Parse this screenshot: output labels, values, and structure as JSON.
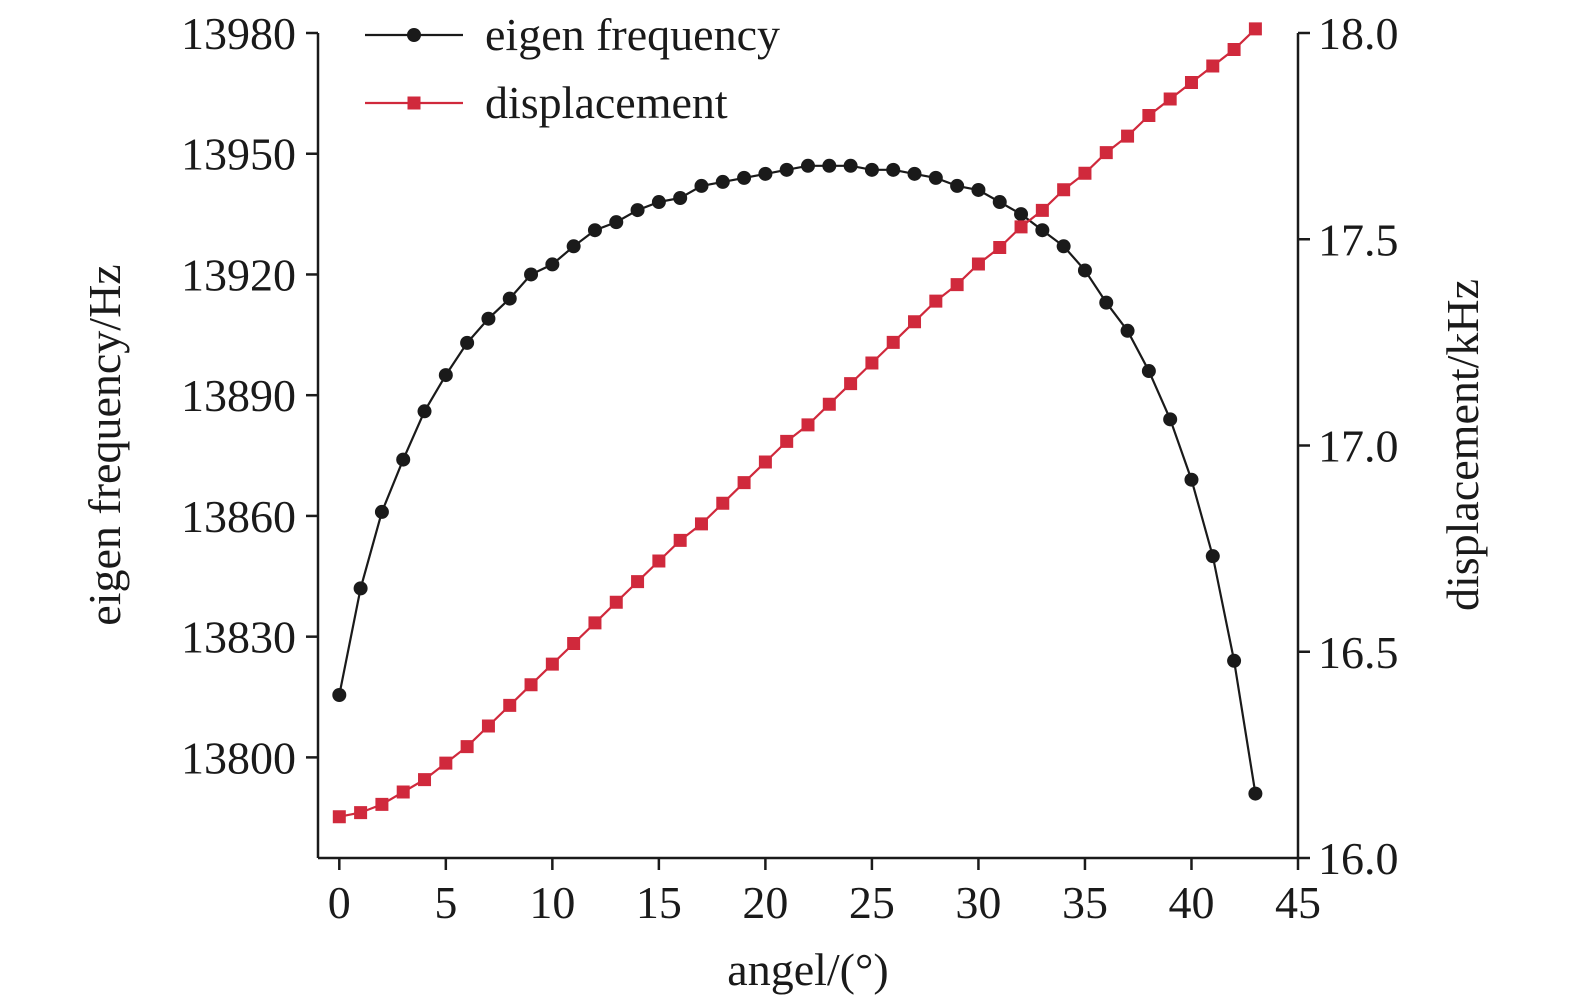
{
  "chart_data": {
    "type": "line",
    "xlabel": "angel/(°)",
    "ylabel_left": "eigen frequency/Hz",
    "ylabel_right": "displacement/kHz",
    "xlim": [
      -1,
      45
    ],
    "ylim_left": [
      13775,
      13980
    ],
    "ylim_right": [
      16.0,
      18.0
    ],
    "x_ticks": [
      0,
      5,
      10,
      15,
      20,
      25,
      30,
      35,
      40,
      45
    ],
    "y_left_ticks": [
      13800,
      13830,
      13860,
      13890,
      13920,
      13950,
      13980
    ],
    "y_right_ticks": [
      "16.0",
      "16.5",
      "17.0",
      "17.5",
      "18.0"
    ],
    "grid": false,
    "legend_position": "top-left",
    "x": [
      0,
      1,
      2,
      3,
      4,
      5,
      6,
      7,
      8,
      9,
      10,
      11,
      12,
      13,
      14,
      15,
      16,
      17,
      18,
      19,
      20,
      21,
      22,
      23,
      24,
      25,
      26,
      27,
      28,
      29,
      30,
      31,
      32,
      33,
      34,
      35,
      36,
      37,
      38,
      39,
      40,
      41,
      42,
      43
    ],
    "series": [
      {
        "name": "eigen frequency",
        "axis": "left",
        "color": "#1a1a1a",
        "marker": "circle",
        "values": [
          13815.5,
          13842,
          13861,
          13874,
          13886,
          13895,
          13903,
          13909,
          13914,
          13920,
          13922.5,
          13927,
          13931,
          13933,
          13936,
          13938,
          13939,
          13942,
          13943,
          13944,
          13945,
          13946,
          13947,
          13947,
          13947,
          13946,
          13946,
          13945,
          13944,
          13942,
          13941,
          13938,
          13935,
          13931,
          13927,
          13921,
          13913,
          13906,
          13896,
          13884,
          13869,
          13850,
          13824,
          13791
        ]
      },
      {
        "name": "displacement",
        "axis": "right",
        "color": "#d0293c",
        "marker": "square",
        "values": [
          16.1,
          16.11,
          16.13,
          16.16,
          16.19,
          16.23,
          16.27,
          16.32,
          16.37,
          16.42,
          16.47,
          16.52,
          16.57,
          16.62,
          16.67,
          16.72,
          16.77,
          16.81,
          16.86,
          16.91,
          16.96,
          17.01,
          17.05,
          17.1,
          17.15,
          17.2,
          17.25,
          17.3,
          17.35,
          17.39,
          17.44,
          17.48,
          17.53,
          17.57,
          17.62,
          17.66,
          17.71,
          17.75,
          17.8,
          17.84,
          17.88,
          17.92,
          17.96,
          18.01
        ]
      }
    ]
  }
}
